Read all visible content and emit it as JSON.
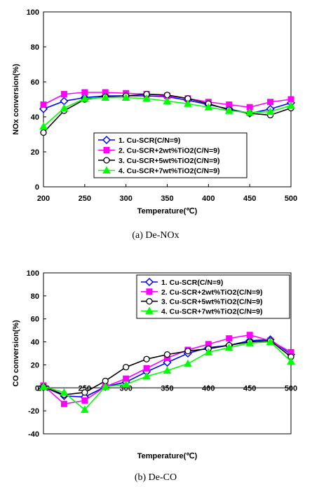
{
  "chart_data": [
    {
      "type": "line",
      "x": [
        200,
        225,
        250,
        275,
        300,
        325,
        350,
        375,
        400,
        425,
        450,
        475,
        500
      ],
      "series": [
        {
          "name": "1. Cu-SCR(C/N=9)",
          "color": "#0000ff",
          "marker": "diamond",
          "values": [
            44.5,
            49,
            51,
            52,
            52,
            52,
            51.5,
            49.5,
            47,
            44.5,
            42,
            44.5,
            48
          ]
        },
        {
          "name": "2. Cu-SCR+2wt%TiO2(C/N=9)",
          "color": "#ff00ff",
          "marker": "square",
          "values": [
            47,
            53,
            54,
            54,
            53.5,
            53,
            52,
            50.5,
            48.5,
            47,
            45.5,
            48.5,
            50
          ]
        },
        {
          "name": "3. Cu-SCR+5wt%TiO2(C/N=9)",
          "color": "#000000",
          "marker": "circle",
          "values": [
            31,
            43.5,
            50,
            51.5,
            52,
            53,
            52.5,
            50.5,
            47.5,
            44,
            42,
            41,
            45
          ]
        },
        {
          "name": "4. Cu-SCR+7wt%TiO2(C/N=9)",
          "color": "#00ff00",
          "marker": "triangle",
          "values": [
            34.5,
            45,
            50.5,
            51,
            51,
            50.5,
            49,
            47.5,
            45.5,
            43.5,
            42.5,
            43,
            46.5
          ]
        }
      ],
      "title": "",
      "xlabel": "Temperature(℃)",
      "ylabel": "NOx conversion(%)",
      "xlim": [
        200,
        500
      ],
      "ylim": [
        0,
        100
      ],
      "xticks": [
        200,
        250,
        300,
        350,
        400,
        450,
        500
      ],
      "yticks": [
        0,
        20,
        40,
        60,
        80,
        100
      ],
      "grid": false,
      "legend_placement": "bottom-center",
      "caption": "(a)  De-NOx"
    },
    {
      "type": "line",
      "x": [
        200,
        225,
        250,
        275,
        300,
        325,
        350,
        375,
        400,
        425,
        450,
        475,
        500
      ],
      "series": [
        {
          "name": "1. Cu-SCR(C/N=9)",
          "color": "#0000ff",
          "marker": "diamond",
          "values": [
            1,
            -7,
            -8,
            1,
            5,
            14,
            22,
            30,
            35,
            37,
            41,
            42,
            29
          ]
        },
        {
          "name": "2. Cu-SCR+2wt%TiO2(C/N=9)",
          "color": "#ff00ff",
          "marker": "square",
          "values": [
            2,
            -14,
            -11,
            1,
            8,
            17,
            26,
            33,
            38,
            43,
            46,
            41,
            31
          ]
        },
        {
          "name": "3. Cu-SCR+5wt%TiO2(C/N=9)",
          "color": "#000000",
          "marker": "circle",
          "values": [
            1,
            -6,
            -4,
            6,
            18,
            25,
            29,
            32,
            34,
            37,
            40,
            41,
            27
          ]
        },
        {
          "name": "4. Cu-SCR+7wt%TiO2(C/N=9)",
          "color": "#00ff00",
          "marker": "triangle",
          "values": [
            1,
            -4,
            -19,
            1,
            3,
            10,
            15,
            21,
            31,
            35,
            39,
            40,
            23
          ]
        }
      ],
      "title": "",
      "xlabel": "Temperature(℃)",
      "ylabel": "CO conversion(%)",
      "xlim": [
        200,
        500
      ],
      "ylim": [
        -40,
        100
      ],
      "xticks": [
        200,
        250,
        300,
        350,
        400,
        450,
        500
      ],
      "yticks": [
        -40,
        -20,
        0,
        20,
        40,
        60,
        80,
        100
      ],
      "grid": false,
      "legend_placement": "top-right",
      "caption": "(b)  De-CO"
    }
  ]
}
